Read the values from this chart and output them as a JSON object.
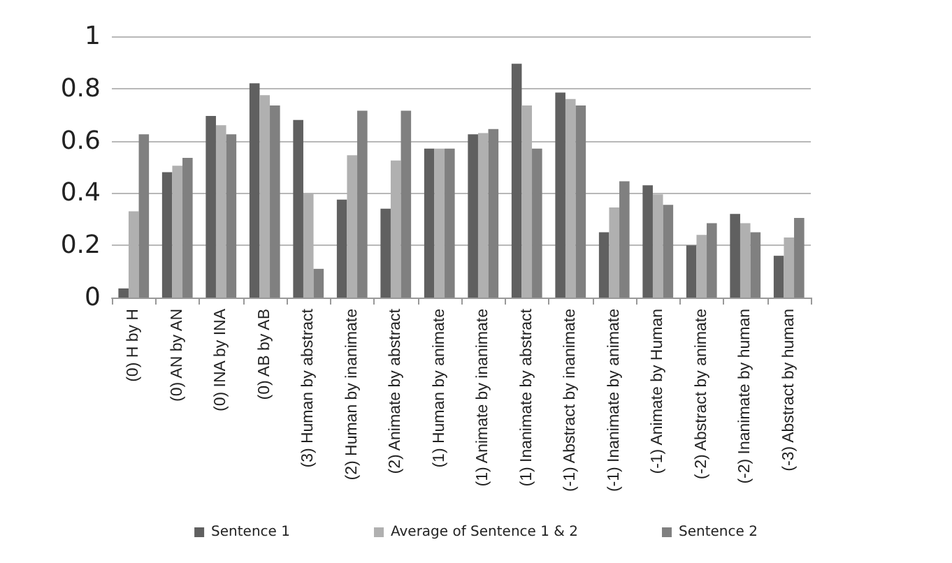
{
  "chart_data": {
    "type": "bar",
    "categories": [
      "(0) H by H",
      "(0) AN by AN",
      "(0) INA by INA",
      "(0) AB by AB",
      "(3) Human by abstract",
      "(2) Human by inanimate",
      "(2) Animate by abstract",
      "(1) Human by animate",
      "(1) Animate by inanimate",
      "(1) Inanimate by abstract",
      "(-1) Abstract by inanimate",
      "(-1) Inanimate by animate",
      "(-1) Animate by Human",
      "(-2) Abstract by animate",
      "(-2) Inanimate by human",
      "(-3) Abstract by human"
    ],
    "series": [
      {
        "name": "Sentence 1",
        "color": "#606060",
        "values": [
          0.035,
          0.48,
          0.695,
          0.82,
          0.68,
          0.375,
          0.34,
          0.57,
          0.625,
          0.895,
          0.785,
          0.25,
          0.43,
          0.2,
          0.32,
          0.16
        ]
      },
      {
        "name": "Average of Sentence 1 & 2",
        "color": "#b0b0b0",
        "values": [
          0.33,
          0.505,
          0.66,
          0.775,
          0.4,
          0.545,
          0.525,
          0.57,
          0.63,
          0.735,
          0.76,
          0.345,
          0.395,
          0.24,
          0.285,
          0.23
        ]
      },
      {
        "name": "Sentence 2",
        "color": "#808080",
        "values": [
          0.625,
          0.535,
          0.625,
          0.735,
          0.11,
          0.715,
          0.715,
          0.57,
          0.645,
          0.57,
          0.735,
          0.445,
          0.355,
          0.285,
          0.25,
          0.305
        ]
      }
    ],
    "ylim": [
      0,
      1
    ],
    "yticks": [
      0,
      0.2,
      0.4,
      0.6,
      0.8,
      1
    ],
    "grid": "y",
    "legend": "bottom"
  }
}
